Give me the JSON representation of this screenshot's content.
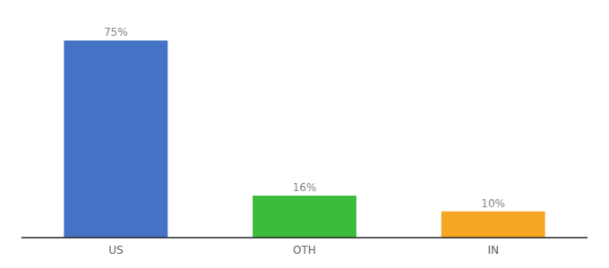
{
  "chart_data": {
    "type": "bar",
    "categories": [
      "US",
      "OTH",
      "IN"
    ],
    "values": [
      75,
      16,
      10
    ],
    "value_labels": [
      "75%",
      "16%",
      "10%"
    ],
    "colors": [
      "#4472c4",
      "#3dbb3d",
      "#f5a623"
    ],
    "ylim": [
      0,
      85
    ],
    "data_labels": true,
    "tick_labels": "x",
    "grid": false
  }
}
